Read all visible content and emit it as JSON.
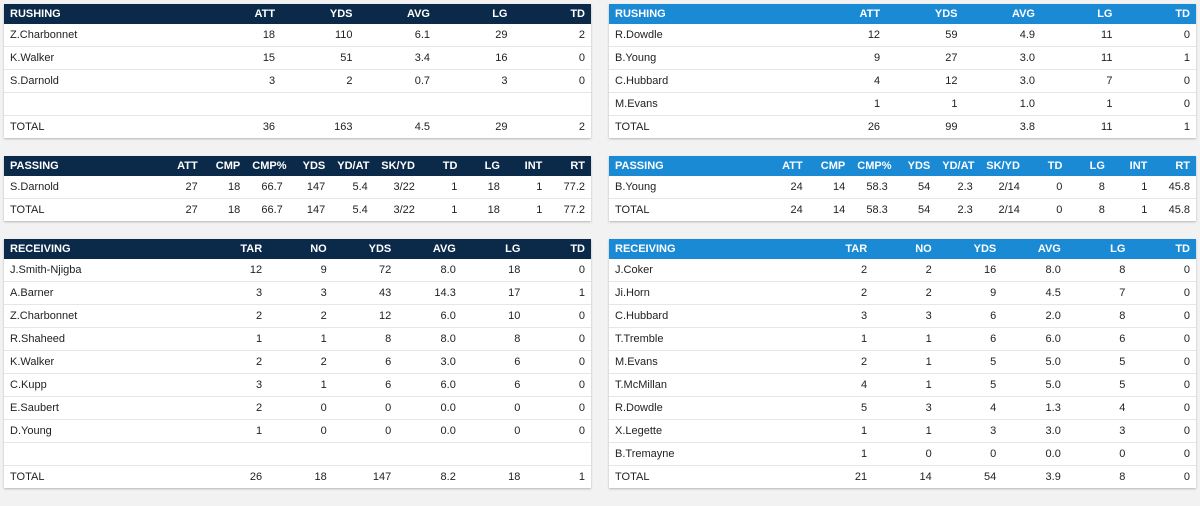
{
  "left": {
    "rushing": {
      "headers": [
        "RUSHING",
        "ATT",
        "YDS",
        "AVG",
        "LG",
        "TD"
      ],
      "rows": [
        [
          "Z.Charbonnet",
          "18",
          "110",
          "6.1",
          "29",
          "2"
        ],
        [
          "K.Walker",
          "15",
          "51",
          "3.4",
          "16",
          "0"
        ],
        [
          "S.Darnold",
          "3",
          "2",
          "0.7",
          "3",
          "0"
        ],
        [
          "",
          "",
          "",
          "",
          "",
          ""
        ],
        [
          "TOTAL",
          "36",
          "163",
          "4.5",
          "29",
          "2"
        ]
      ]
    },
    "passing": {
      "headers": [
        "PASSING",
        "ATT",
        "CMP",
        "CMP%",
        "YDS",
        "YD/AT",
        "SK/YD",
        "TD",
        "LG",
        "INT",
        "RT"
      ],
      "rows": [
        [
          "S.Darnold",
          "27",
          "18",
          "66.7",
          "147",
          "5.4",
          "3/22",
          "1",
          "18",
          "1",
          "77.2"
        ],
        [
          "TOTAL",
          "27",
          "18",
          "66.7",
          "147",
          "5.4",
          "3/22",
          "1",
          "18",
          "1",
          "77.2"
        ]
      ]
    },
    "receiving": {
      "headers": [
        "RECEIVING",
        "TAR",
        "NO",
        "YDS",
        "AVG",
        "LG",
        "TD"
      ],
      "rows": [
        [
          "J.Smith-Njigba",
          "12",
          "9",
          "72",
          "8.0",
          "18",
          "0"
        ],
        [
          "A.Barner",
          "3",
          "3",
          "43",
          "14.3",
          "17",
          "1"
        ],
        [
          "Z.Charbonnet",
          "2",
          "2",
          "12",
          "6.0",
          "10",
          "0"
        ],
        [
          "R.Shaheed",
          "1",
          "1",
          "8",
          "8.0",
          "8",
          "0"
        ],
        [
          "K.Walker",
          "2",
          "2",
          "6",
          "3.0",
          "6",
          "0"
        ],
        [
          "C.Kupp",
          "3",
          "1",
          "6",
          "6.0",
          "6",
          "0"
        ],
        [
          "E.Saubert",
          "2",
          "0",
          "0",
          "0.0",
          "0",
          "0"
        ],
        [
          "D.Young",
          "1",
          "0",
          "0",
          "0.0",
          "0",
          "0"
        ],
        [
          "",
          "",
          "",
          "",
          "",
          "",
          ""
        ],
        [
          "TOTAL",
          "26",
          "18",
          "147",
          "8.2",
          "18",
          "1"
        ]
      ]
    }
  },
  "right": {
    "rushing": {
      "headers": [
        "RUSHING",
        "ATT",
        "YDS",
        "AVG",
        "LG",
        "TD"
      ],
      "rows": [
        [
          "R.Dowdle",
          "12",
          "59",
          "4.9",
          "11",
          "0"
        ],
        [
          "B.Young",
          "9",
          "27",
          "3.0",
          "11",
          "1"
        ],
        [
          "C.Hubbard",
          "4",
          "12",
          "3.0",
          "7",
          "0"
        ],
        [
          "M.Evans",
          "1",
          "1",
          "1.0",
          "1",
          "0"
        ],
        [
          "TOTAL",
          "26",
          "99",
          "3.8",
          "11",
          "1"
        ]
      ]
    },
    "passing": {
      "headers": [
        "PASSING",
        "ATT",
        "CMP",
        "CMP%",
        "YDS",
        "YD/AT",
        "SK/YD",
        "TD",
        "LG",
        "INT",
        "RT"
      ],
      "rows": [
        [
          "B.Young",
          "24",
          "14",
          "58.3",
          "54",
          "2.3",
          "2/14",
          "0",
          "8",
          "1",
          "45.8"
        ],
        [
          "TOTAL",
          "24",
          "14",
          "58.3",
          "54",
          "2.3",
          "2/14",
          "0",
          "8",
          "1",
          "45.8"
        ]
      ]
    },
    "receiving": {
      "headers": [
        "RECEIVING",
        "TAR",
        "NO",
        "YDS",
        "AVG",
        "LG",
        "TD"
      ],
      "rows": [
        [
          "J.Coker",
          "2",
          "2",
          "16",
          "8.0",
          "8",
          "0"
        ],
        [
          "Ji.Horn",
          "2",
          "2",
          "9",
          "4.5",
          "7",
          "0"
        ],
        [
          "C.Hubbard",
          "3",
          "3",
          "6",
          "2.0",
          "8",
          "0"
        ],
        [
          "T.Tremble",
          "1",
          "1",
          "6",
          "6.0",
          "6",
          "0"
        ],
        [
          "M.Evans",
          "2",
          "1",
          "5",
          "5.0",
          "5",
          "0"
        ],
        [
          "T.McMillan",
          "4",
          "1",
          "5",
          "5.0",
          "5",
          "0"
        ],
        [
          "R.Dowdle",
          "5",
          "3",
          "4",
          "1.3",
          "4",
          "0"
        ],
        [
          "X.Legette",
          "1",
          "1",
          "3",
          "3.0",
          "3",
          "0"
        ],
        [
          "B.Tremayne",
          "1",
          "0",
          "0",
          "0.0",
          "0",
          "0"
        ],
        [
          "TOTAL",
          "21",
          "14",
          "54",
          "3.9",
          "8",
          "0"
        ]
      ]
    }
  },
  "colors": {
    "left_header": "#0b2a4a",
    "right_header": "#1a8ad4"
  }
}
